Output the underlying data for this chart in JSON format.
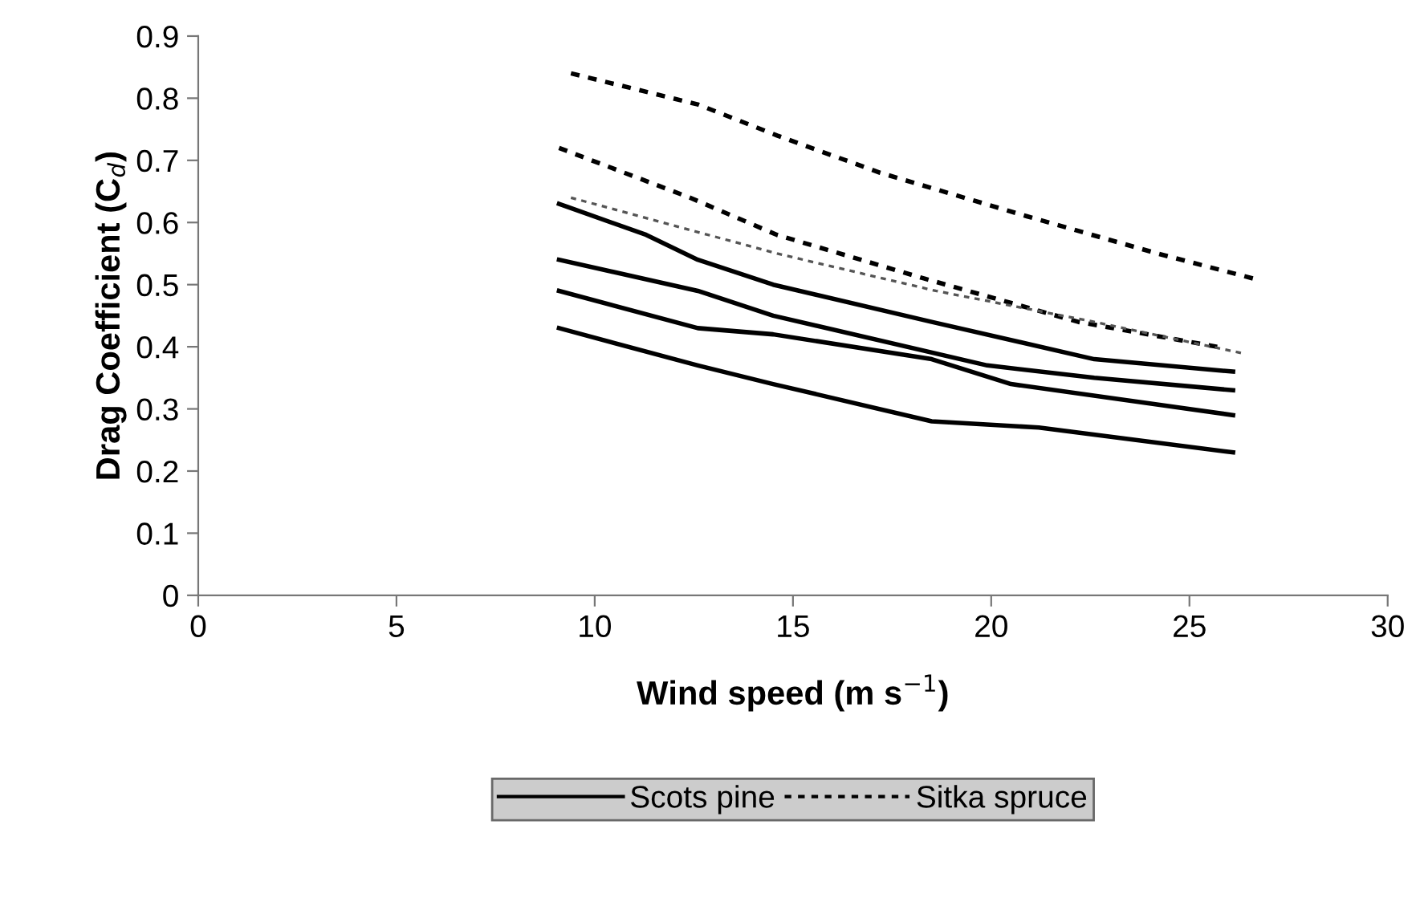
{
  "chart_data": {
    "type": "line",
    "xlabel": "Wind speed (m s$^{−1}$)",
    "ylabel": "Drag Coefficient (C$_{d}$)",
    "xlim": [
      0,
      30
    ],
    "xticks": [
      0,
      5,
      10,
      15,
      20,
      25,
      30
    ],
    "ylim": [
      0,
      0.9
    ],
    "yticks": [
      0,
      0.1,
      0.2,
      0.3,
      0.4,
      0.5,
      0.6,
      0.7,
      0.8,
      0.9
    ],
    "grid": false,
    "legend": "bottom",
    "marker": "none",
    "series": [
      {
        "name": "Scots pine",
        "color": "#000000",
        "line_style": "solid",
        "x": [
          9.1,
          11.3,
          12.6,
          14.5,
          18.5,
          22.6,
          26.1
        ],
        "values": [
          0.63,
          0.58,
          0.54,
          0.5,
          0.44,
          0.38,
          0.36
        ]
      },
      {
        "color": "#000000",
        "line_style": "solid",
        "x": [
          9.1,
          12.6,
          14.5,
          19.9,
          22.6,
          26.1
        ],
        "values": [
          0.54,
          0.49,
          0.45,
          0.37,
          0.35,
          0.33
        ]
      },
      {
        "color": "#000000",
        "line_style": "solid",
        "x": [
          9.1,
          12.6,
          14.5,
          18.5,
          20.5,
          26.1
        ],
        "values": [
          0.49,
          0.43,
          0.42,
          0.38,
          0.34,
          0.29
        ]
      },
      {
        "color": "#000000",
        "line_style": "solid",
        "x": [
          9.1,
          12.6,
          14.5,
          18.5,
          21.2,
          26.1
        ],
        "values": [
          0.43,
          0.37,
          0.34,
          0.28,
          0.27,
          0.23
        ]
      },
      {
        "name": "Sitka spruce",
        "color": "#000000",
        "line_style": "dashed",
        "x": [
          9.4,
          12.6,
          14.6,
          17.2,
          20.9,
          24.2,
          26.6
        ],
        "values": [
          0.84,
          0.79,
          0.74,
          0.68,
          0.61,
          0.55,
          0.51
        ]
      },
      {
        "color": "#000000",
        "line_style": "dashed",
        "x": [
          9.1,
          12.4,
          14.6,
          18.3,
          22.2,
          25.7
        ],
        "values": [
          0.72,
          0.64,
          0.58,
          0.51,
          0.44,
          0.4
        ]
      },
      {
        "color": "#555555",
        "line_style": "dashed",
        "x": [
          9.4,
          14.6,
          18.6,
          22.6,
          26.3
        ],
        "values": [
          0.64,
          0.55,
          0.49,
          0.44,
          0.39
        ]
      }
    ]
  }
}
